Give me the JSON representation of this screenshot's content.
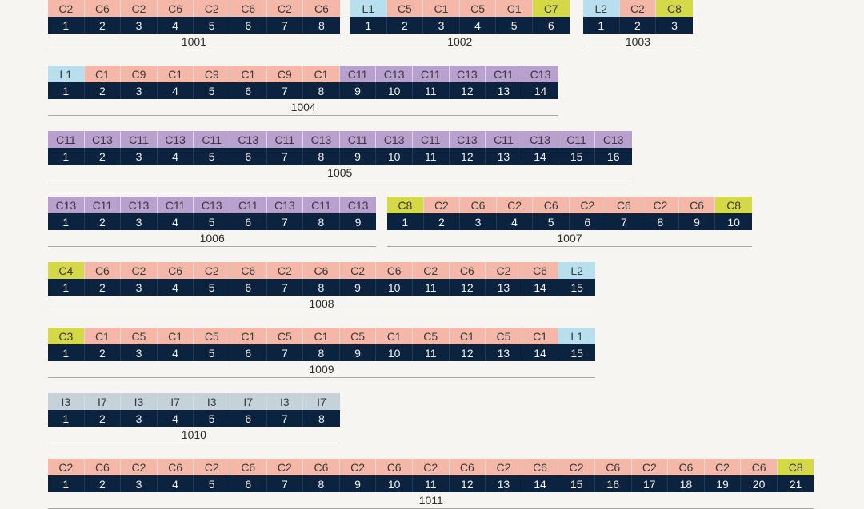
{
  "colors": {
    "C": "#f4b7a8",
    "L": "#b7dfee",
    "P": "#b8a0cf",
    "Y": "#d5d847",
    "I": "#c6d2da",
    "number_bg": "#0c2340"
  },
  "groups": [
    {
      "id": "1001",
      "cells": [
        {
          "t": "C2",
          "c": "C"
        },
        {
          "t": "C6",
          "c": "C"
        },
        {
          "t": "C2",
          "c": "C"
        },
        {
          "t": "C6",
          "c": "C"
        },
        {
          "t": "C2",
          "c": "C"
        },
        {
          "t": "C6",
          "c": "C"
        },
        {
          "t": "C2",
          "c": "C"
        },
        {
          "t": "C6",
          "c": "C"
        }
      ],
      "numbers": [
        "1",
        "2",
        "3",
        "4",
        "5",
        "6",
        "7",
        "8"
      ]
    },
    {
      "id": "1002",
      "cells": [
        {
          "t": "L1",
          "c": "L"
        },
        {
          "t": "C5",
          "c": "C"
        },
        {
          "t": "C1",
          "c": "C"
        },
        {
          "t": "C5",
          "c": "C"
        },
        {
          "t": "C1",
          "c": "C"
        },
        {
          "t": "C7",
          "c": "Y"
        }
      ],
      "numbers": [
        "1",
        "2",
        "3",
        "4",
        "5",
        "6"
      ]
    },
    {
      "id": "1003",
      "cells": [
        {
          "t": "L2",
          "c": "L"
        },
        {
          "t": "C2",
          "c": "C"
        },
        {
          "t": "C8",
          "c": "Y"
        }
      ],
      "numbers": [
        "1",
        "2",
        "3"
      ]
    },
    {
      "id": "1004",
      "cells": [
        {
          "t": "L1",
          "c": "L"
        },
        {
          "t": "C1",
          "c": "C"
        },
        {
          "t": "C9",
          "c": "C"
        },
        {
          "t": "C1",
          "c": "C"
        },
        {
          "t": "C9",
          "c": "C"
        },
        {
          "t": "C1",
          "c": "C"
        },
        {
          "t": "C9",
          "c": "C"
        },
        {
          "t": "C1",
          "c": "C"
        },
        {
          "t": "C11",
          "c": "P"
        },
        {
          "t": "C13",
          "c": "P"
        },
        {
          "t": "C11",
          "c": "P"
        },
        {
          "t": "C13",
          "c": "P"
        },
        {
          "t": "C11",
          "c": "P"
        },
        {
          "t": "C13",
          "c": "P"
        }
      ],
      "numbers": [
        "1",
        "2",
        "3",
        "4",
        "5",
        "6",
        "7",
        "8",
        "9",
        "10",
        "11",
        "12",
        "13",
        "14"
      ]
    },
    {
      "id": "1005",
      "cells": [
        {
          "t": "C11",
          "c": "P"
        },
        {
          "t": "C13",
          "c": "P"
        },
        {
          "t": "C11",
          "c": "P"
        },
        {
          "t": "C13",
          "c": "P"
        },
        {
          "t": "C11",
          "c": "P"
        },
        {
          "t": "C13",
          "c": "P"
        },
        {
          "t": "C11",
          "c": "P"
        },
        {
          "t": "C13",
          "c": "P"
        },
        {
          "t": "C11",
          "c": "P"
        },
        {
          "t": "C13",
          "c": "P"
        },
        {
          "t": "C11",
          "c": "P"
        },
        {
          "t": "C13",
          "c": "P"
        },
        {
          "t": "C11",
          "c": "P"
        },
        {
          "t": "C13",
          "c": "P"
        },
        {
          "t": "C11",
          "c": "P"
        },
        {
          "t": "C13",
          "c": "P"
        }
      ],
      "numbers": [
        "1",
        "2",
        "3",
        "4",
        "5",
        "6",
        "7",
        "8",
        "9",
        "10",
        "11",
        "12",
        "13",
        "14",
        "15",
        "16"
      ]
    },
    {
      "id": "1006",
      "cells": [
        {
          "t": "C13",
          "c": "P"
        },
        {
          "t": "C11",
          "c": "P"
        },
        {
          "t": "C13",
          "c": "P"
        },
        {
          "t": "C11",
          "c": "P"
        },
        {
          "t": "C13",
          "c": "P"
        },
        {
          "t": "C11",
          "c": "P"
        },
        {
          "t": "C13",
          "c": "P"
        },
        {
          "t": "C11",
          "c": "P"
        },
        {
          "t": "C13",
          "c": "P"
        }
      ],
      "numbers": [
        "1",
        "2",
        "3",
        "4",
        "5",
        "6",
        "7",
        "8",
        "9"
      ]
    },
    {
      "id": "1007",
      "cells": [
        {
          "t": "C8",
          "c": "Y"
        },
        {
          "t": "C2",
          "c": "C"
        },
        {
          "t": "C6",
          "c": "C"
        },
        {
          "t": "C2",
          "c": "C"
        },
        {
          "t": "C6",
          "c": "C"
        },
        {
          "t": "C2",
          "c": "C"
        },
        {
          "t": "C6",
          "c": "C"
        },
        {
          "t": "C2",
          "c": "C"
        },
        {
          "t": "C6",
          "c": "C"
        },
        {
          "t": "C8",
          "c": "Y"
        }
      ],
      "numbers": [
        "1",
        "2",
        "3",
        "4",
        "5",
        "6",
        "7",
        "8",
        "9",
        "10"
      ]
    },
    {
      "id": "1008",
      "cells": [
        {
          "t": "C4",
          "c": "Y"
        },
        {
          "t": "C6",
          "c": "C"
        },
        {
          "t": "C2",
          "c": "C"
        },
        {
          "t": "C6",
          "c": "C"
        },
        {
          "t": "C2",
          "c": "C"
        },
        {
          "t": "C6",
          "c": "C"
        },
        {
          "t": "C2",
          "c": "C"
        },
        {
          "t": "C6",
          "c": "C"
        },
        {
          "t": "C2",
          "c": "C"
        },
        {
          "t": "C6",
          "c": "C"
        },
        {
          "t": "C2",
          "c": "C"
        },
        {
          "t": "C6",
          "c": "C"
        },
        {
          "t": "C2",
          "c": "C"
        },
        {
          "t": "C6",
          "c": "C"
        },
        {
          "t": "L2",
          "c": "L"
        }
      ],
      "numbers": [
        "1",
        "2",
        "3",
        "4",
        "5",
        "6",
        "7",
        "8",
        "9",
        "10",
        "11",
        "12",
        "13",
        "14",
        "15"
      ]
    },
    {
      "id": "1009",
      "cells": [
        {
          "t": "C3",
          "c": "Y"
        },
        {
          "t": "C1",
          "c": "C"
        },
        {
          "t": "C5",
          "c": "C"
        },
        {
          "t": "C1",
          "c": "C"
        },
        {
          "t": "C5",
          "c": "C"
        },
        {
          "t": "C1",
          "c": "C"
        },
        {
          "t": "C5",
          "c": "C"
        },
        {
          "t": "C1",
          "c": "C"
        },
        {
          "t": "C5",
          "c": "C"
        },
        {
          "t": "C1",
          "c": "C"
        },
        {
          "t": "C5",
          "c": "C"
        },
        {
          "t": "C1",
          "c": "C"
        },
        {
          "t": "C5",
          "c": "C"
        },
        {
          "t": "C1",
          "c": "C"
        },
        {
          "t": "L1",
          "c": "L"
        }
      ],
      "numbers": [
        "1",
        "2",
        "3",
        "4",
        "5",
        "6",
        "7",
        "8",
        "9",
        "10",
        "11",
        "12",
        "13",
        "14",
        "15"
      ]
    },
    {
      "id": "1010",
      "cells": [
        {
          "t": "I3",
          "c": "I"
        },
        {
          "t": "I7",
          "c": "I"
        },
        {
          "t": "I3",
          "c": "I"
        },
        {
          "t": "I7",
          "c": "I"
        },
        {
          "t": "I3",
          "c": "I"
        },
        {
          "t": "I7",
          "c": "I"
        },
        {
          "t": "I3",
          "c": "I"
        },
        {
          "t": "I7",
          "c": "I"
        }
      ],
      "numbers": [
        "1",
        "2",
        "3",
        "4",
        "5",
        "6",
        "7",
        "8"
      ]
    },
    {
      "id": "1011",
      "cells": [
        {
          "t": "C2",
          "c": "C"
        },
        {
          "t": "C6",
          "c": "C"
        },
        {
          "t": "C2",
          "c": "C"
        },
        {
          "t": "C6",
          "c": "C"
        },
        {
          "t": "C2",
          "c": "C"
        },
        {
          "t": "C6",
          "c": "C"
        },
        {
          "t": "C2",
          "c": "C"
        },
        {
          "t": "C6",
          "c": "C"
        },
        {
          "t": "C2",
          "c": "C"
        },
        {
          "t": "C6",
          "c": "C"
        },
        {
          "t": "C2",
          "c": "C"
        },
        {
          "t": "C6",
          "c": "C"
        },
        {
          "t": "C2",
          "c": "C"
        },
        {
          "t": "C6",
          "c": "C"
        },
        {
          "t": "C2",
          "c": "C"
        },
        {
          "t": "C6",
          "c": "C"
        },
        {
          "t": "C2",
          "c": "C"
        },
        {
          "t": "C6",
          "c": "C"
        },
        {
          "t": "C2",
          "c": "C"
        },
        {
          "t": "C6",
          "c": "C"
        },
        {
          "t": "C8",
          "c": "Y"
        }
      ],
      "numbers": [
        "1",
        "2",
        "3",
        "4",
        "5",
        "6",
        "7",
        "8",
        "9",
        "10",
        "11",
        "12",
        "13",
        "14",
        "15",
        "16",
        "17",
        "18",
        "19",
        "20",
        "21"
      ]
    }
  ]
}
